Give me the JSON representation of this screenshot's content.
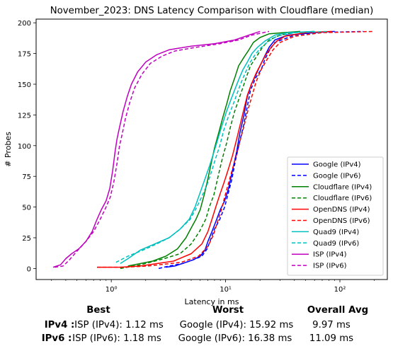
{
  "chart_data": {
    "type": "line",
    "title": "November_2023: DNS Latency Comparison with Cloudflare (median)",
    "xlabel": "Latency in ms",
    "ylabel": "# Probes",
    "x_scale": "log",
    "xlim": [
      0.22,
      260
    ],
    "ylim": [
      -9,
      203
    ],
    "yticks": [
      0,
      25,
      50,
      75,
      100,
      125,
      150,
      175,
      200
    ],
    "xticks": [
      {
        "value": 1,
        "label": "10⁰"
      },
      {
        "value": 10,
        "label": "10¹"
      },
      {
        "value": 100,
        "label": "10²"
      }
    ],
    "grid": false,
    "legend_position": "lower-right",
    "series": [
      {
        "name": "Google (IPv4)",
        "color": "#0000ff",
        "dash": "solid",
        "points": [
          [
            3.0,
            1
          ],
          [
            3.6,
            2
          ],
          [
            4.5,
            5
          ],
          [
            5.2,
            7
          ],
          [
            6.0,
            10
          ],
          [
            6.6,
            15
          ],
          [
            7.0,
            22
          ],
          [
            7.6,
            30
          ],
          [
            8.2,
            38
          ],
          [
            9.0,
            48
          ],
          [
            9.8,
            55
          ],
          [
            10.6,
            65
          ],
          [
            11.5,
            80
          ],
          [
            12.5,
            95
          ],
          [
            13.3,
            110
          ],
          [
            14.5,
            125
          ],
          [
            15.5,
            140
          ],
          [
            16.8,
            150
          ],
          [
            18.5,
            158
          ],
          [
            20.0,
            165
          ],
          [
            22.0,
            173
          ],
          [
            24.0,
            180
          ],
          [
            27.0,
            186
          ],
          [
            35.0,
            190
          ],
          [
            60.0,
            192
          ],
          [
            90.0,
            193
          ]
        ]
      },
      {
        "name": "Google (IPv6)",
        "color": "#0000ff",
        "dash": "dashed",
        "points": [
          [
            2.6,
            0
          ],
          [
            3.2,
            2
          ],
          [
            4.2,
            4
          ],
          [
            5.2,
            7
          ],
          [
            6.2,
            10
          ],
          [
            6.9,
            16
          ],
          [
            7.5,
            25
          ],
          [
            8.0,
            32
          ],
          [
            8.9,
            40
          ],
          [
            9.8,
            50
          ],
          [
            10.6,
            62
          ],
          [
            11.3,
            72
          ],
          [
            12.2,
            88
          ],
          [
            13.2,
            102
          ],
          [
            14.5,
            118
          ],
          [
            15.5,
            132
          ],
          [
            16.5,
            145
          ],
          [
            18.3,
            155
          ],
          [
            20.5,
            162
          ],
          [
            22.0,
            170
          ],
          [
            24.0,
            177
          ],
          [
            27.0,
            184
          ],
          [
            40.0,
            190
          ],
          [
            60.0,
            192
          ],
          [
            160.0,
            193
          ]
        ]
      },
      {
        "name": "Cloudflare (IPv4)",
        "color": "#008000",
        "dash": "solid",
        "points": [
          [
            1.4,
            2
          ],
          [
            2.3,
            6
          ],
          [
            3.0,
            10
          ],
          [
            3.8,
            16
          ],
          [
            4.5,
            25
          ],
          [
            5.0,
            33
          ],
          [
            5.5,
            40
          ],
          [
            6.0,
            48
          ],
          [
            6.5,
            60
          ],
          [
            7.0,
            73
          ],
          [
            7.5,
            86
          ],
          [
            8.0,
            98
          ],
          [
            8.8,
            112
          ],
          [
            9.4,
            122
          ],
          [
            10.3,
            135
          ],
          [
            11.0,
            145
          ],
          [
            12.0,
            155
          ],
          [
            13.0,
            165
          ],
          [
            14.5,
            172
          ],
          [
            16.0,
            178
          ],
          [
            17.5,
            184
          ],
          [
            20.0,
            188
          ],
          [
            24.0,
            191
          ],
          [
            32.0,
            192
          ],
          [
            45.0,
            193
          ]
        ]
      },
      {
        "name": "Cloudflare (IPv6)",
        "color": "#008000",
        "dash": "dashed",
        "points": [
          [
            1.2,
            0
          ],
          [
            1.8,
            3
          ],
          [
            2.9,
            8
          ],
          [
            4.0,
            12
          ],
          [
            5.0,
            20
          ],
          [
            5.9,
            30
          ],
          [
            6.7,
            40
          ],
          [
            7.2,
            50
          ],
          [
            7.9,
            60
          ],
          [
            8.6,
            75
          ],
          [
            9.4,
            90
          ],
          [
            10.2,
            102
          ],
          [
            11.0,
            115
          ],
          [
            12.0,
            128
          ],
          [
            13.3,
            140
          ],
          [
            14.5,
            150
          ],
          [
            15.5,
            158
          ],
          [
            16.5,
            165
          ],
          [
            18.5,
            172
          ],
          [
            21.0,
            180
          ],
          [
            24.0,
            186
          ],
          [
            30.0,
            190
          ],
          [
            40.0,
            192
          ],
          [
            60.0,
            193
          ]
        ]
      },
      {
        "name": "OpenDNS (IPv4)",
        "color": "#ff0000",
        "dash": "solid",
        "points": [
          [
            0.75,
            1
          ],
          [
            1.2,
            1
          ],
          [
            1.8,
            2
          ],
          [
            3.5,
            6
          ],
          [
            5.0,
            12
          ],
          [
            6.2,
            20
          ],
          [
            7.0,
            30
          ],
          [
            7.6,
            40
          ],
          [
            8.2,
            50
          ],
          [
            8.9,
            60
          ],
          [
            9.7,
            70
          ],
          [
            10.5,
            80
          ],
          [
            11.5,
            92
          ],
          [
            12.4,
            104
          ],
          [
            13.5,
            118
          ],
          [
            14.5,
            130
          ],
          [
            15.5,
            141
          ],
          [
            16.8,
            150
          ],
          [
            18.5,
            159
          ],
          [
            20.5,
            167
          ],
          [
            22.5,
            174
          ],
          [
            25.0,
            180
          ],
          [
            28.0,
            185
          ],
          [
            33.0,
            189
          ],
          [
            50.0,
            192
          ],
          [
            85.0,
            193
          ]
        ]
      },
      {
        "name": "OpenDNS (IPv6)",
        "color": "#ff0000",
        "dash": "dashed",
        "points": [
          [
            0.75,
            1
          ],
          [
            1.3,
            1
          ],
          [
            2.1,
            2
          ],
          [
            4.1,
            5
          ],
          [
            5.8,
            10
          ],
          [
            7.0,
            18
          ],
          [
            7.8,
            27
          ],
          [
            8.5,
            38
          ],
          [
            9.2,
            48
          ],
          [
            9.8,
            58
          ],
          [
            10.5,
            68
          ],
          [
            11.4,
            80
          ],
          [
            12.4,
            92
          ],
          [
            13.4,
            104
          ],
          [
            14.5,
            116
          ],
          [
            15.8,
            130
          ],
          [
            17.2,
            142
          ],
          [
            18.5,
            152
          ],
          [
            20.5,
            162
          ],
          [
            23.0,
            170
          ],
          [
            26.0,
            178
          ],
          [
            30.0,
            184
          ],
          [
            40.0,
            189
          ],
          [
            70.0,
            192
          ],
          [
            200.0,
            193
          ]
        ]
      },
      {
        "name": "Quad9 (IPv4)",
        "color": "#00bfbf",
        "dash": "solid",
        "points": [
          [
            1.2,
            4
          ],
          [
            1.4,
            8
          ],
          [
            1.8,
            15
          ],
          [
            2.4,
            20
          ],
          [
            3.2,
            25
          ],
          [
            4.0,
            32
          ],
          [
            4.8,
            40
          ],
          [
            5.4,
            50
          ],
          [
            6.0,
            62
          ],
          [
            6.6,
            73
          ],
          [
            7.2,
            83
          ],
          [
            7.8,
            93
          ],
          [
            8.4,
            103
          ],
          [
            9.2,
            115
          ],
          [
            10.2,
            128
          ],
          [
            11.2,
            138
          ],
          [
            12.2,
            147
          ],
          [
            13.2,
            155
          ],
          [
            14.2,
            162
          ],
          [
            15.5,
            168
          ],
          [
            17.0,
            175
          ],
          [
            19.0,
            180
          ],
          [
            22.0,
            185
          ],
          [
            27.0,
            190
          ],
          [
            35.0,
            192
          ],
          [
            60.0,
            193
          ]
        ]
      },
      {
        "name": "Quad9 (IPv6)",
        "color": "#00bfbf",
        "dash": "dashed",
        "points": [
          [
            1.1,
            5
          ],
          [
            1.4,
            10
          ],
          [
            1.9,
            15
          ],
          [
            2.5,
            20
          ],
          [
            3.2,
            25
          ],
          [
            4.0,
            32
          ],
          [
            4.9,
            40
          ],
          [
            5.6,
            50
          ],
          [
            6.3,
            60
          ],
          [
            7.0,
            70
          ],
          [
            7.6,
            80
          ],
          [
            8.2,
            90
          ],
          [
            8.9,
            100
          ],
          [
            9.6,
            112
          ],
          [
            10.6,
            124
          ],
          [
            11.8,
            135
          ],
          [
            12.9,
            145
          ],
          [
            13.9,
            153
          ],
          [
            15.0,
            160
          ],
          [
            16.2,
            167
          ],
          [
            17.8,
            173
          ],
          [
            20.0,
            179
          ],
          [
            23.0,
            184
          ],
          [
            28.0,
            189
          ],
          [
            40.0,
            192
          ],
          [
            80.0,
            193
          ]
        ]
      },
      {
        "name": "ISP (IPv4)",
        "color": "#bf00bf",
        "dash": "solid",
        "points": [
          [
            0.31,
            1
          ],
          [
            0.36,
            3
          ],
          [
            0.4,
            8
          ],
          [
            0.45,
            12
          ],
          [
            0.52,
            16
          ],
          [
            0.6,
            22
          ],
          [
            0.68,
            30
          ],
          [
            0.75,
            40
          ],
          [
            0.82,
            48
          ],
          [
            0.9,
            55
          ],
          [
            0.97,
            65
          ],
          [
            1.03,
            80
          ],
          [
            1.08,
            95
          ],
          [
            1.12,
            105
          ],
          [
            1.18,
            115
          ],
          [
            1.27,
            128
          ],
          [
            1.38,
            140
          ],
          [
            1.5,
            150
          ],
          [
            1.7,
            160
          ],
          [
            2.0,
            168
          ],
          [
            2.5,
            174
          ],
          [
            3.2,
            178
          ],
          [
            5.0,
            181
          ],
          [
            8.0,
            183
          ],
          [
            12.0,
            186
          ],
          [
            16.0,
            190
          ],
          [
            20.0,
            193
          ]
        ]
      },
      {
        "name": "ISP (IPv6)",
        "color": "#bf00bf",
        "dash": "dashed",
        "points": [
          [
            0.32,
            1
          ],
          [
            0.38,
            2
          ],
          [
            0.43,
            7
          ],
          [
            0.5,
            14
          ],
          [
            0.6,
            22
          ],
          [
            0.7,
            30
          ],
          [
            0.8,
            40
          ],
          [
            0.9,
            50
          ],
          [
            0.98,
            58
          ],
          [
            1.05,
            70
          ],
          [
            1.12,
            85
          ],
          [
            1.18,
            100
          ],
          [
            1.25,
            110
          ],
          [
            1.33,
            122
          ],
          [
            1.45,
            135
          ],
          [
            1.6,
            147
          ],
          [
            1.85,
            158
          ],
          [
            2.2,
            167
          ],
          [
            2.8,
            173
          ],
          [
            3.6,
            177
          ],
          [
            5.5,
            180
          ],
          [
            9.0,
            183
          ],
          [
            13.0,
            186
          ],
          [
            17.0,
            190
          ],
          [
            24.0,
            193
          ]
        ]
      }
    ]
  },
  "summary": {
    "headers": {
      "best": "Best",
      "worst": "Worst",
      "avg": "Overall Avg"
    },
    "rows": [
      {
        "label": "IPv4 :",
        "best": "ISP (IPv4): 1.12 ms",
        "worst": "Google (IPv4): 15.92 ms",
        "avg": "9.97 ms"
      },
      {
        "label": "IPv6 :",
        "best": "ISP (IPv6): 1.18 ms",
        "worst": "Google (IPv6): 16.38 ms",
        "avg": "11.09 ms"
      }
    ]
  }
}
